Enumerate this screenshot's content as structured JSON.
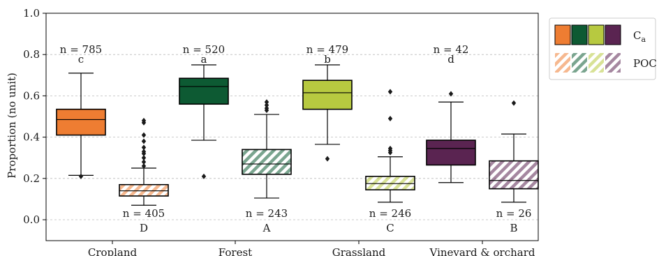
{
  "chart_data": {
    "type": "box",
    "ylabel": "Proportion (no unit)",
    "xlabel": "",
    "ylim": [
      -0.05,
      1.0
    ],
    "yticks": [
      "0.0",
      "0.2",
      "0.4",
      "0.6",
      "0.8",
      "1.0"
    ],
    "categories": [
      "Cropland",
      "Forest",
      "Grassland",
      "Vineyard & orchard"
    ],
    "legend": {
      "position": "top-right",
      "entries": [
        {
          "label": "C",
          "sub": "a",
          "pattern": "solid"
        },
        {
          "label": "POC",
          "pattern": "hatched"
        }
      ]
    },
    "colors": {
      "Cropland": "#ee7d32",
      "Forest": "#0d5a33",
      "Grassland": "#b7c940",
      "Vineyard & orchard": "#5a2451"
    },
    "series": [
      {
        "name": "Ca",
        "boxes": [
          {
            "category": "Cropland",
            "whisker_low": 0.215,
            "q1": 0.41,
            "median": 0.485,
            "q3": 0.535,
            "whisker_high": 0.71,
            "outliers": [
              0.21
            ],
            "n_label": "n = 785",
            "letter": "c"
          },
          {
            "category": "Forest",
            "whisker_low": 0.385,
            "q1": 0.56,
            "median": 0.645,
            "q3": 0.685,
            "whisker_high": 0.75,
            "outliers": [
              0.21
            ],
            "n_label": "n = 520",
            "letter": "a"
          },
          {
            "category": "Grassland",
            "whisker_low": 0.365,
            "q1": 0.535,
            "median": 0.615,
            "q3": 0.675,
            "whisker_high": 0.75,
            "outliers": [
              0.295
            ],
            "n_label": "n = 479",
            "letter": "b"
          },
          {
            "category": "Vineyard & orchard",
            "whisker_low": 0.18,
            "q1": 0.265,
            "median": 0.345,
            "q3": 0.385,
            "whisker_high": 0.57,
            "outliers": [
              0.61
            ],
            "n_label": "n = 42",
            "letter": "d"
          }
        ]
      },
      {
        "name": "POC",
        "boxes": [
          {
            "category": "Cropland",
            "whisker_low": 0.07,
            "q1": 0.115,
            "median": 0.14,
            "q3": 0.17,
            "whisker_high": 0.25,
            "outliers": [
              0.26,
              0.28,
              0.3,
              0.32,
              0.33,
              0.35,
              0.38,
              0.41,
              0.47,
              0.48
            ],
            "n_label": "n = 405",
            "letter": "D"
          },
          {
            "category": "Forest",
            "whisker_low": 0.105,
            "q1": 0.22,
            "median": 0.27,
            "q3": 0.34,
            "whisker_high": 0.51,
            "outliers": [
              0.53,
              0.54,
              0.555,
              0.57
            ],
            "n_label": "n = 243",
            "letter": "A"
          },
          {
            "category": "Grassland",
            "whisker_low": 0.085,
            "q1": 0.145,
            "median": 0.175,
            "q3": 0.21,
            "whisker_high": 0.305,
            "outliers": [
              0.325,
              0.335,
              0.345,
              0.49,
              0.62
            ],
            "n_label": "n = 246",
            "letter": "C"
          },
          {
            "category": "Vineyard & orchard",
            "whisker_low": 0.085,
            "q1": 0.15,
            "median": 0.19,
            "q3": 0.285,
            "whisker_high": 0.415,
            "outliers": [
              0.565
            ],
            "n_label": "n = 26",
            "letter": "B"
          }
        ]
      }
    ]
  }
}
